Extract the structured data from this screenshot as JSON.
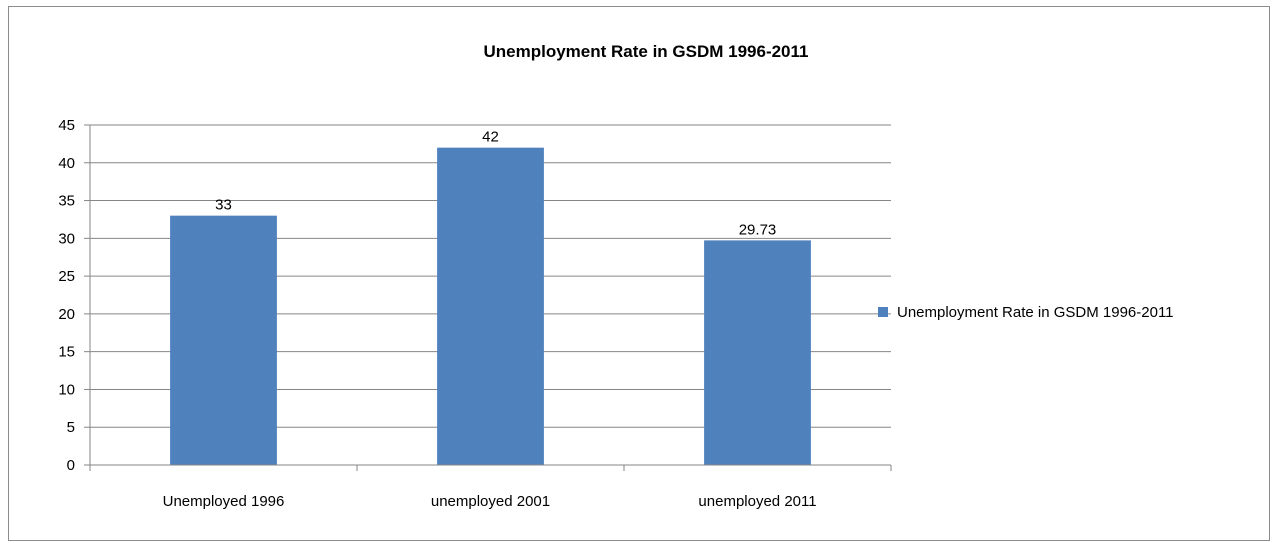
{
  "chart_data": {
    "type": "bar",
    "title": "Unemployment Rate in GSDM 1996-2011",
    "categories": [
      "Unemployed 1996",
      "unemployed 2001",
      "unemployed 2011"
    ],
    "series": [
      {
        "name": "Unemployment Rate in GSDM 1996-2011",
        "values": [
          33,
          42,
          29.73
        ],
        "data_labels": [
          "33",
          "42",
          "29.73"
        ],
        "color": "#4f81bd"
      }
    ],
    "ylim": [
      0,
      45
    ],
    "yticks": [
      "0",
      "5",
      "10",
      "15",
      "20",
      "25",
      "30",
      "35",
      "40",
      "45"
    ],
    "xlabel": "",
    "ylabel": "",
    "grid": true,
    "legend_position": "right"
  }
}
